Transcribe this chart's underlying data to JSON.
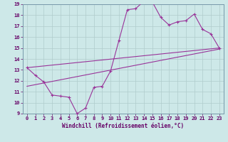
{
  "xlabel": "Windchill (Refroidissement éolien,°C)",
  "background_color": "#cde8e8",
  "grid_color": "#b0cccc",
  "line_color": "#993399",
  "border_color": "#7799aa",
  "xlim": [
    -0.5,
    23.5
  ],
  "ylim": [
    9,
    19
  ],
  "x_ticks": [
    0,
    1,
    2,
    3,
    4,
    5,
    6,
    7,
    8,
    9,
    10,
    11,
    12,
    13,
    14,
    15,
    16,
    17,
    18,
    19,
    20,
    21,
    22,
    23
  ],
  "y_ticks": [
    9,
    10,
    11,
    12,
    13,
    14,
    15,
    16,
    17,
    18,
    19
  ],
  "line1_x": [
    0,
    1,
    2,
    3,
    4,
    5,
    6,
    7,
    8,
    9,
    10,
    11,
    12,
    13,
    14,
    15,
    16,
    17,
    18,
    19,
    20,
    21,
    22,
    23
  ],
  "line1_y": [
    13.2,
    12.5,
    11.9,
    10.7,
    10.6,
    10.5,
    9.0,
    9.5,
    11.4,
    11.5,
    12.9,
    15.7,
    18.5,
    18.6,
    19.3,
    19.2,
    17.8,
    17.1,
    17.4,
    17.5,
    18.1,
    16.7,
    16.3,
    15.0
  ],
  "line2_x": [
    0,
    23
  ],
  "line2_y": [
    11.5,
    14.9
  ],
  "line3_x": [
    0,
    23
  ],
  "line3_y": [
    13.2,
    15.0
  ]
}
